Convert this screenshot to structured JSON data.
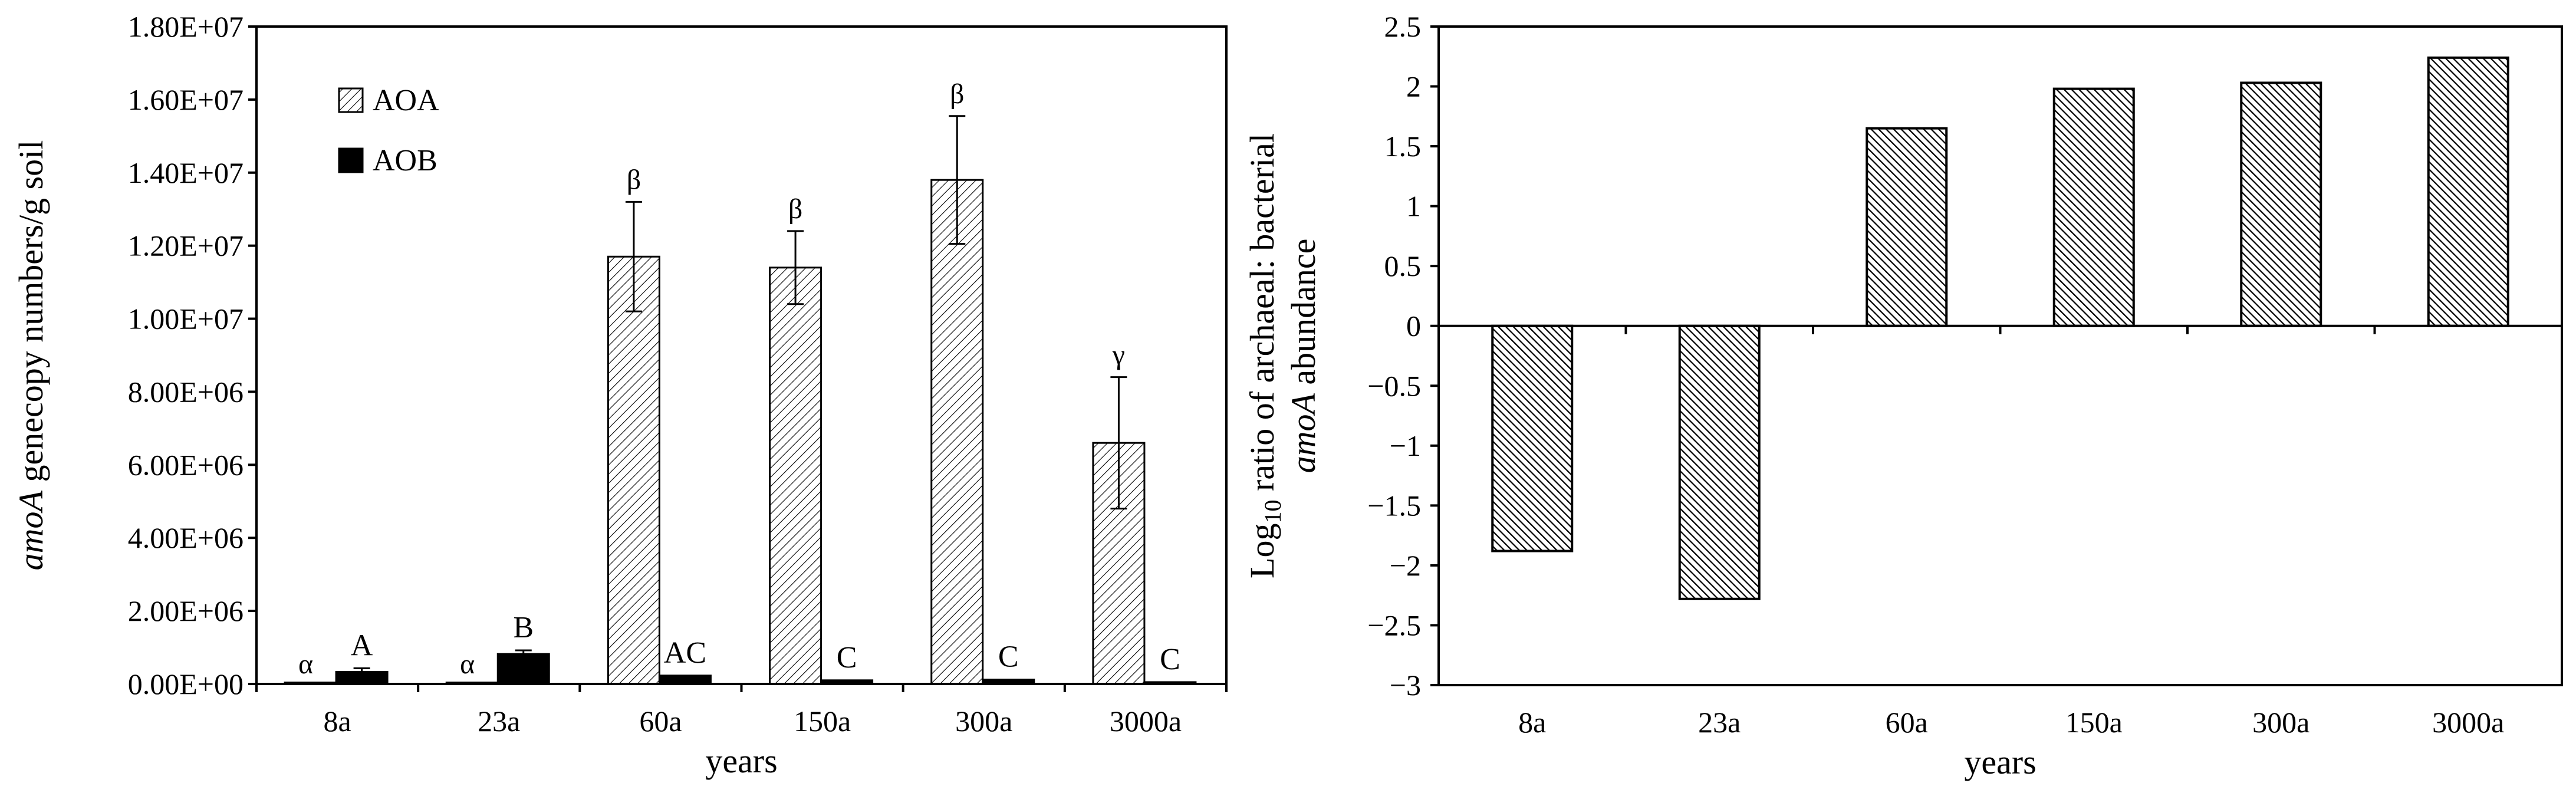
{
  "colors": {
    "axis": "#000000",
    "aoa_fill": "pattern-light-diagonal",
    "aob_fill": "#000000",
    "ratio_fill": "pattern-dense-diagonal"
  },
  "chart_data": [
    {
      "type": "bar",
      "xlabel": "years",
      "ylabel_italic": "amoA",
      "ylabel_rest": " genecopy numbers/g soil",
      "ylim": [
        0,
        18000000
      ],
      "yticks": [
        0,
        2000000,
        4000000,
        6000000,
        8000000,
        10000000,
        12000000,
        14000000,
        16000000,
        18000000
      ],
      "ytick_labels": [
        "0.00E+00",
        "2.00E+06",
        "4.00E+06",
        "6.00E+06",
        "8.00E+06",
        "1.00E+07",
        "1.20E+07",
        "1.40E+07",
        "1.60E+07",
        "1.80E+07"
      ],
      "categories": [
        "8a",
        "23a",
        "60a",
        "150a",
        "300a",
        "3000a"
      ],
      "legend_position": "top-left",
      "series": [
        {
          "name": "AOA",
          "values": [
            40000,
            40000,
            11700000,
            11400000,
            13800000,
            6600000
          ],
          "errors": [
            0,
            0,
            1500000,
            1000000,
            1750000,
            1800000
          ],
          "labels": [
            "α",
            "α",
            "β",
            "β",
            "β",
            "γ"
          ]
        },
        {
          "name": "AOB",
          "values": [
            330000,
            820000,
            230000,
            100000,
            120000,
            50000
          ],
          "errors": [
            100000,
            100000,
            0,
            0,
            0,
            0
          ],
          "labels": [
            "A",
            "B",
            "AC",
            "C",
            "C",
            "C"
          ]
        }
      ]
    },
    {
      "type": "bar",
      "xlabel": "years",
      "ylabel_line1_prefix": "Log",
      "ylabel_line1_sub": "10",
      "ylabel_line1_rest": " ratio of archaeal: bacterial",
      "ylabel_line2_italic": "amoA",
      "ylabel_line2_rest": " abundance",
      "ylim": [
        -3,
        2.5
      ],
      "yticks": [
        -3,
        -2.5,
        -2,
        -1.5,
        -1,
        -0.5,
        0,
        0.5,
        1,
        1.5,
        2,
        2.5
      ],
      "ytick_labels": [
        "−3",
        "−2.5",
        "−2",
        "−1.5",
        "−1",
        "−0.5",
        "0",
        "0.5",
        "1",
        "1.5",
        "2",
        "2.5"
      ],
      "categories": [
        "8a",
        "23a",
        "60a",
        "150a",
        "300a",
        "3000a"
      ],
      "values": [
        -1.88,
        -2.28,
        1.65,
        1.98,
        2.03,
        2.24
      ]
    }
  ]
}
